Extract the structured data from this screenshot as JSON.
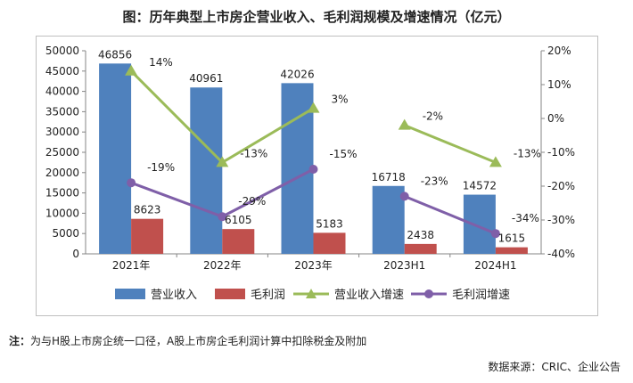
{
  "title": "图：历年典型上市房企营业收入、毛利润规模及增速情况（亿元）",
  "note": {
    "label": "注：",
    "text": "为与H股上市房企统一口径，A股上市房企毛利润计算中扣除税金及附加"
  },
  "source": "数据来源：CRIC、企业公告",
  "colors": {
    "revenue": "#4f81bd",
    "gross_profit": "#c0504d",
    "revenue_growth": "#9bbb59",
    "gross_profit_growth": "#7f5fa8"
  },
  "chart_data": {
    "type": "bar",
    "categories": [
      "2021年",
      "2022年",
      "2023年",
      "2023H1",
      "2024H1"
    ],
    "series": [
      {
        "name": "营业收入",
        "type": "bar",
        "axis": "left",
        "values": [
          46856,
          40961,
          42026,
          16718,
          14572
        ],
        "labels": [
          "46856",
          "40961",
          "42026",
          "16718",
          "14572"
        ]
      },
      {
        "name": "毛利润",
        "type": "bar",
        "axis": "left",
        "values": [
          8623,
          6105,
          5183,
          2438,
          1615
        ],
        "labels": [
          "8623",
          "6105",
          "5183",
          "2438",
          "1615"
        ]
      },
      {
        "name": "营业收入增速",
        "type": "line",
        "axis": "right",
        "marker": "triangle",
        "values": [
          14,
          -13,
          3,
          -2,
          -13
        ],
        "labels": [
          "14%",
          "-13%",
          "3%",
          "-2%",
          "-13%"
        ],
        "segments": [
          [
            0,
            1,
            2
          ],
          [
            3,
            4
          ]
        ]
      },
      {
        "name": "毛利润增速",
        "type": "line",
        "axis": "right",
        "marker": "circle",
        "values": [
          -19,
          -29,
          -15,
          -23,
          -34
        ],
        "labels": [
          "-19%",
          "-29%",
          "-15%",
          "-23%",
          "-34%"
        ],
        "segments": [
          [
            0,
            1,
            2
          ],
          [
            3,
            4
          ]
        ]
      }
    ],
    "y_left": {
      "min": 0,
      "max": 50000,
      "step": 5000,
      "ticks": [
        "0",
        "5000",
        "10000",
        "15000",
        "20000",
        "25000",
        "30000",
        "35000",
        "40000",
        "45000",
        "50000"
      ]
    },
    "y_right": {
      "min": -40,
      "max": 20,
      "step": 10,
      "ticks": [
        "-40%",
        "-30%",
        "-20%",
        "-10%",
        "0%",
        "10%",
        "20%"
      ]
    },
    "grid": false,
    "legend_position": "bottom"
  }
}
